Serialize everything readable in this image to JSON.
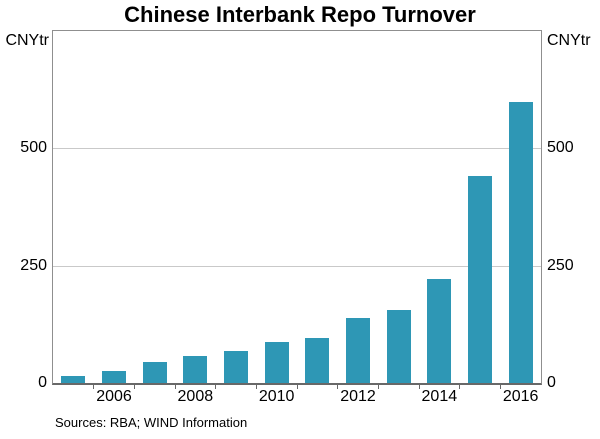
{
  "header": {
    "title": "Chinese Interbank Repo Turnover"
  },
  "axes": {
    "left_unit": "CNYtr",
    "right_unit": "CNYtr"
  },
  "footer": {
    "sources": "Sources: RBA; WIND Information"
  },
  "colors": {
    "bar": "#2e97b5",
    "gridline": "#c9c9c9",
    "border": "#8f8f8f",
    "baseline": "#686868"
  },
  "chart_data": {
    "type": "bar",
    "title": "Chinese Interbank Repo Turnover",
    "unit": "CNYtr",
    "categories": [
      2005,
      2006,
      2007,
      2008,
      2009,
      2010,
      2011,
      2012,
      2013,
      2014,
      2015,
      2016
    ],
    "values": [
      14,
      26,
      44,
      57,
      68,
      87,
      96,
      139,
      156,
      221,
      440,
      598
    ],
    "xlabel": "",
    "ylabel": "CNYtr",
    "ylim": [
      0,
      750
    ],
    "yticks": [
      0,
      250,
      500
    ],
    "xtick_labels": [
      "2006",
      "2008",
      "2010",
      "2012",
      "2014",
      "2016"
    ],
    "grid": true,
    "legend": "none",
    "source_note": "Sources: RBA; WIND Information"
  }
}
